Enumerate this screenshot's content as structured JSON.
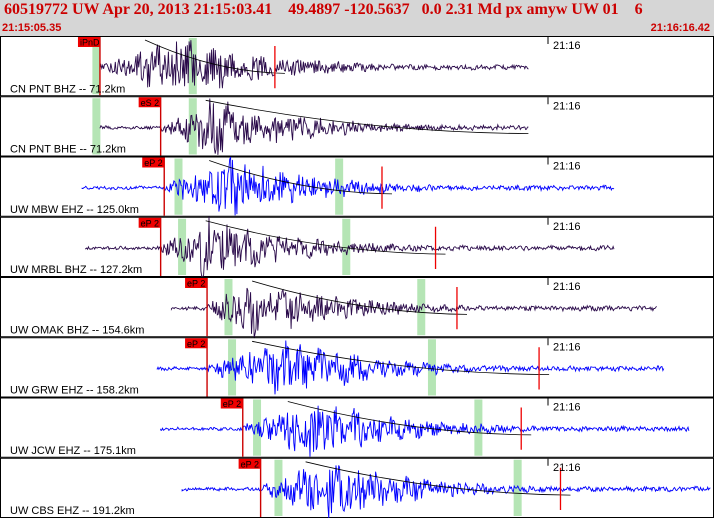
{
  "header": {
    "title": "60519772 UW Apr 20, 2013 21:15:03.41    49.4897 -120.5637   0.0 2.31 Md px amyw UW 01    6",
    "start_time": "21:15:05.35",
    "end_time": "21:16:16.42"
  },
  "chart_data": {
    "type": "line",
    "time_start": "21:15:05.35",
    "time_end": "21:16:16.42",
    "minute_mark_label": "21:16",
    "traces": [
      {
        "station": "CN PNT BHZ -- 71.2km",
        "pick": "iPnD",
        "pick_frac": 0.14,
        "color": "#2a0a4a",
        "sig_start": 0.14,
        "sig_end": 0.74,
        "peak_frac": 0.26,
        "red_marker": 0.385,
        "green_marks": [
          0.135,
          0.27
        ]
      },
      {
        "station": "CN PNT BHE -- 71.2km",
        "pick": "eS 2",
        "pick_frac": 0.225,
        "color": "#2a0a4a",
        "sig_start": 0.14,
        "sig_end": 0.74,
        "peak_frac": 0.3,
        "red_marker": null,
        "green_marks": [
          0.135,
          0.27
        ]
      },
      {
        "station": "UW MBW EHZ -- 125.0km",
        "pick": "eP 2",
        "pick_frac": 0.23,
        "color": "#0000ff",
        "sig_start": 0.115,
        "sig_end": 0.86,
        "peak_frac": 0.32,
        "red_marker": 0.535,
        "green_marks": [
          0.25,
          0.475
        ]
      },
      {
        "station": "UW MRBL BHZ -- 127.2km",
        "pick": "eP 2",
        "pick_frac": 0.225,
        "color": "#2a0a4a",
        "sig_start": 0.12,
        "sig_end": 0.86,
        "peak_frac": 0.29,
        "red_marker": 0.61,
        "green_marks": [
          0.255,
          0.485
        ]
      },
      {
        "station": "UW OMAK BHZ -- 154.6km",
        "pick": "eP 2",
        "pick_frac": 0.29,
        "color": "#2a0a4a",
        "sig_start": 0.24,
        "sig_end": 0.92,
        "peak_frac": 0.35,
        "red_marker": 0.64,
        "green_marks": [
          0.32,
          0.59
        ]
      },
      {
        "station": "UW GRW EHZ -- 158.2km",
        "pick": "eP 2",
        "pick_frac": 0.29,
        "color": "#0000ff",
        "sig_start": 0.22,
        "sig_end": 0.93,
        "peak_frac": 0.4,
        "red_marker": 0.755,
        "green_marks": [
          0.325,
          0.605
        ]
      },
      {
        "station": "UW JCW EHZ -- 175.1km",
        "pick": "eP 2",
        "pick_frac": 0.34,
        "color": "#0000ff",
        "sig_start": 0.225,
        "sig_end": 0.965,
        "peak_frac": 0.44,
        "red_marker": 0.73,
        "green_marks": [
          0.36,
          0.67
        ]
      },
      {
        "station": "UW CBS EHZ -- 191.2km",
        "pick": "eP 2",
        "pick_frac": 0.365,
        "color": "#0000ff",
        "sig_start": 0.255,
        "sig_end": 0.995,
        "peak_frac": 0.46,
        "red_marker": 0.785,
        "green_marks": [
          0.39,
          0.725
        ]
      }
    ],
    "grid": false,
    "legend": "none"
  }
}
